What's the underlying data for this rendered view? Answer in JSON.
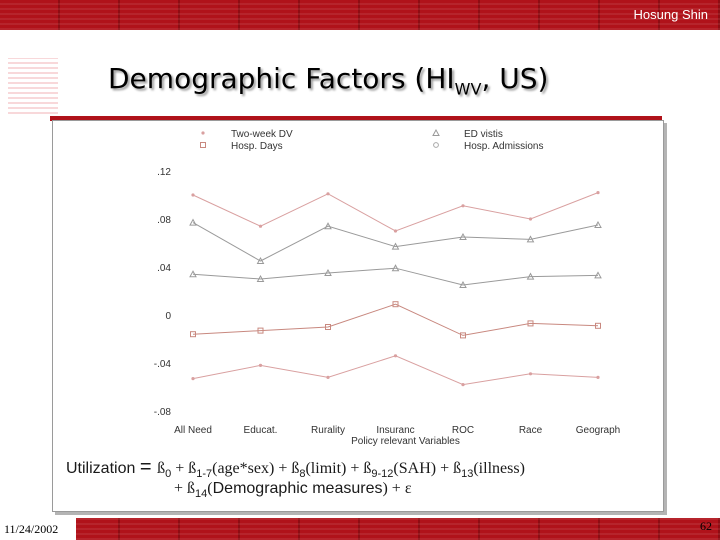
{
  "header": {
    "author": "Hosung Shin"
  },
  "footer": {
    "date": "11/24/2002",
    "page_number": "62"
  },
  "slide": {
    "title": "Demographic Factors (HI",
    "title_sub": "WV",
    "title_suffix": ", US)"
  },
  "formula": {
    "line1": [
      {
        "t": "Utilization ",
        "style": "sans"
      },
      {
        "t": "= ",
        "style": "eq"
      },
      {
        "t": "ß",
        "style": "serif"
      },
      {
        "t": "0",
        "style": "sub"
      },
      {
        "t": " + ß",
        "style": "serif"
      },
      {
        "t": "1-7",
        "style": "sub"
      },
      {
        "t": "(age*sex) + ß",
        "style": "serif"
      },
      {
        "t": "8",
        "style": "sub"
      },
      {
        "t": "(limit) + ß",
        "style": "serif"
      },
      {
        "t": "9-12",
        "style": "sub"
      },
      {
        "t": "(SAH) + ß",
        "style": "serif"
      },
      {
        "t": "13",
        "style": "sub"
      },
      {
        "t": "(illness)",
        "style": "serif"
      }
    ],
    "line2": [
      {
        "t": "+ ß",
        "style": "serif"
      },
      {
        "t": "14",
        "style": "sub"
      },
      {
        "t": "(",
        "style": "serif"
      },
      {
        "t": "Demographic measures",
        "style": "sans"
      },
      {
        "t": ") + ε",
        "style": "serif"
      }
    ]
  },
  "chart_data": {
    "type": "line",
    "categories": [
      "All Need",
      "Educat.",
      "Rurality",
      "Insuranc",
      "ROC",
      "Race",
      "Geograph"
    ],
    "xlabel": "Policy relevant Variables",
    "ylabel": "",
    "ylim": [
      -0.08,
      0.12
    ],
    "y_ticks": [
      ".12",
      ".08",
      ".04",
      "0",
      "-.04",
      "-.08"
    ],
    "y_tick_values": [
      0.12,
      0.08,
      0.04,
      0,
      -0.04,
      -0.08
    ],
    "grid": false,
    "legend_position": "top",
    "series": [
      {
        "name": "Two-week DV",
        "marker": "dot",
        "color": "#d9a0a0",
        "upper": [
          0.1,
          0.074,
          0.101,
          0.07,
          0.091,
          0.08,
          0.102
        ],
        "lower": [
          -0.053,
          -0.042,
          -0.052,
          -0.034,
          -0.058,
          -0.049,
          -0.052
        ]
      },
      {
        "name": "ED vistis",
        "marker": "triangle",
        "color": "#9a9a9a",
        "upper": [
          0.077,
          0.045,
          0.074,
          0.057,
          0.065,
          0.063,
          0.075
        ],
        "lower": [
          0.034,
          0.03,
          0.035,
          0.039,
          0.025,
          0.032,
          0.033
        ]
      },
      {
        "name": "Hosp. Days",
        "marker": "square",
        "color": "#c8887f",
        "upper": [
          -0.016,
          -0.013,
          -0.01,
          0.009,
          -0.017,
          -0.007,
          -0.009
        ],
        "lower": []
      },
      {
        "name": "Hosp. Admissions",
        "marker": "circle",
        "color": "#a8a8a8",
        "upper": [],
        "lower": []
      }
    ]
  }
}
